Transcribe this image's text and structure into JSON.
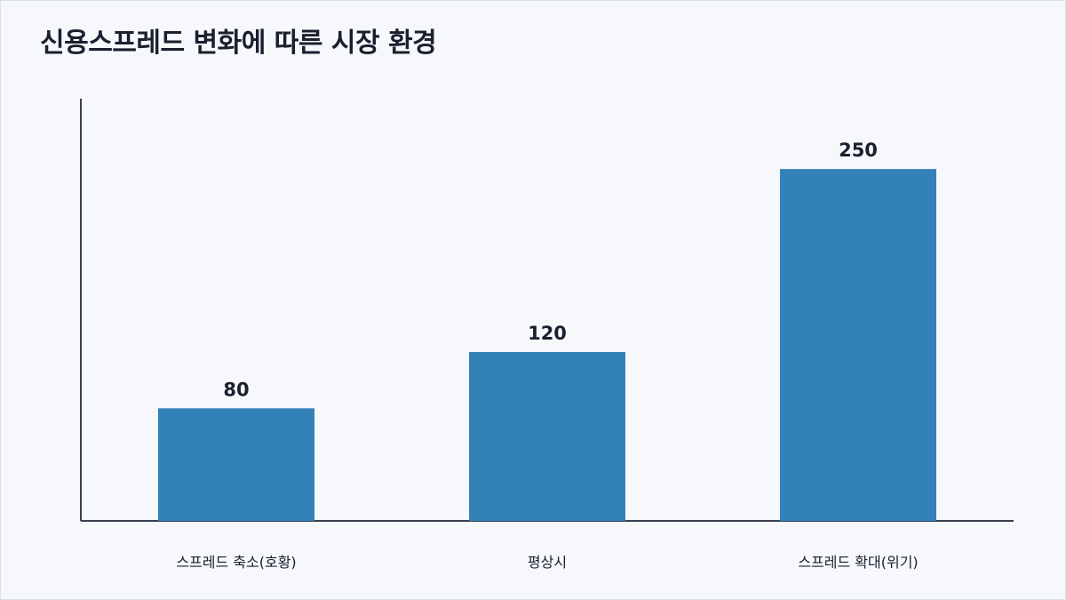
{
  "chart_data": {
    "type": "bar",
    "title": "신용스프레드 변화에 따른 시장 환경",
    "categories": [
      "스프레드 축소(호황)",
      "평상시",
      "스프레드 확대(위기)"
    ],
    "values": [
      80,
      120,
      250
    ],
    "xlabel": "",
    "ylabel": "",
    "ylim": [
      0,
      300
    ],
    "grid": false,
    "legend": "none",
    "colors": {
      "bar": "#3282b8",
      "axis": "#3a3f4f",
      "text": "#1b1f2e",
      "background": "#f6f8fc"
    }
  }
}
